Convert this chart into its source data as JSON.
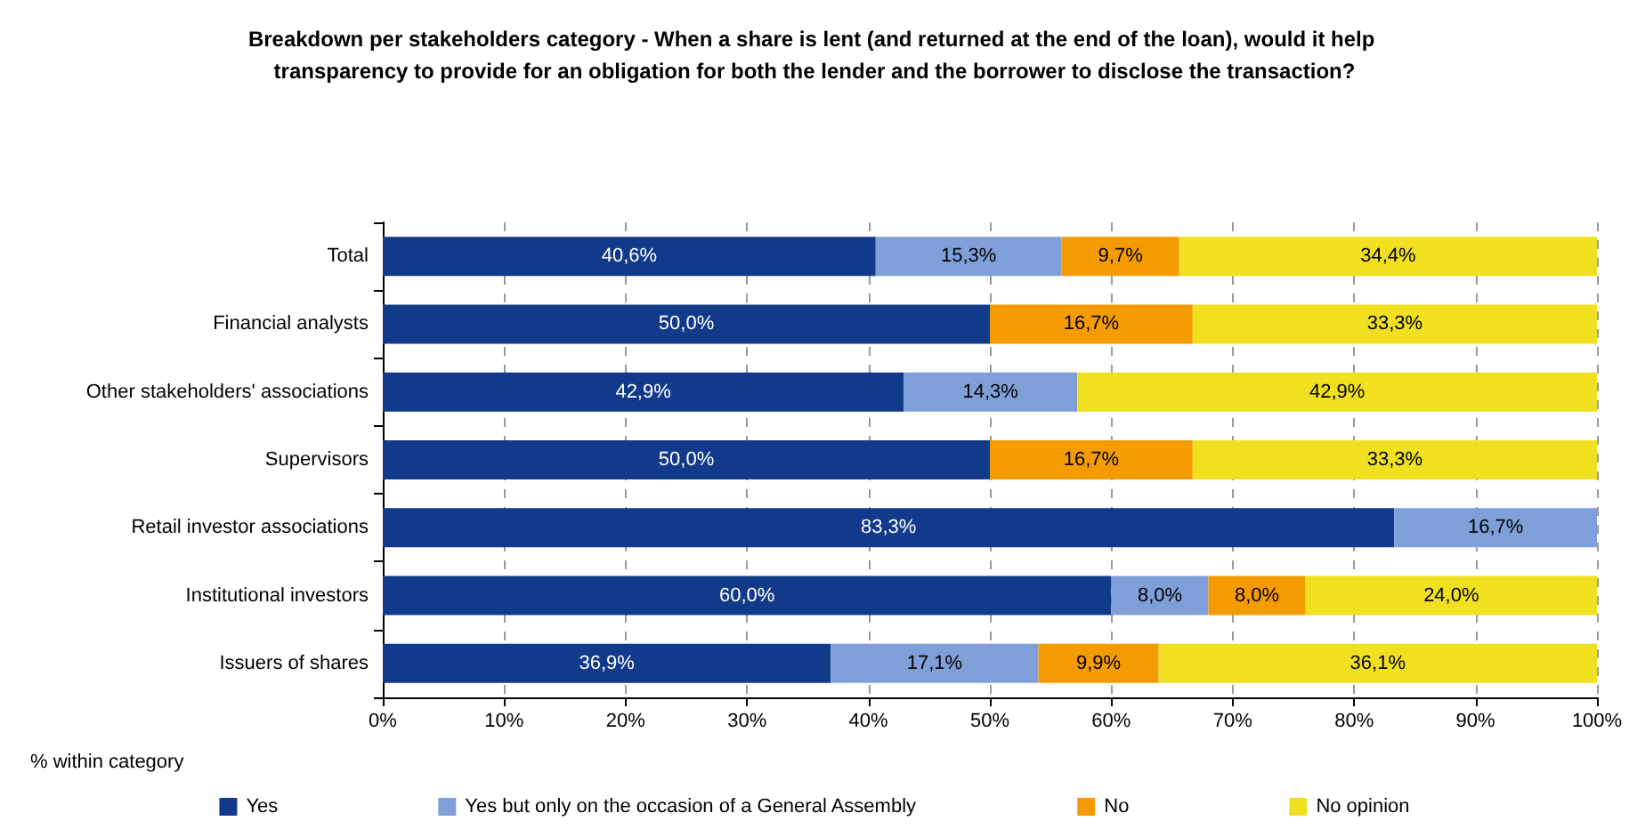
{
  "chart_data": {
    "type": "bar",
    "orientation": "horizontal",
    "stacked": true,
    "title": "Breakdown per stakeholders category - When a share is lent (and returned at the end of the loan), would it help transparency to provide for an obligation for both the lender and the borrower to disclose the transaction?",
    "xlabel": "% within category",
    "categories": [
      "Total",
      "Financial analysts",
      "Other stakeholders' associations",
      "Supervisors",
      "Retail investor associations",
      "Institutional investors",
      "Issuers of shares"
    ],
    "series": [
      {
        "name": "Yes",
        "color": "#123a8a",
        "values": [
          40.6,
          50.0,
          42.9,
          50.0,
          83.3,
          60.0,
          36.9
        ],
        "value_labels": [
          "40,6%",
          "50,0%",
          "42,9%",
          "50,0%",
          "83,3%",
          "60,0%",
          "36,9%"
        ]
      },
      {
        "name": "Yes but only on the occasion of a General Assembly",
        "color": "#7f9fd8",
        "values": [
          15.3,
          null,
          14.3,
          null,
          16.7,
          8.0,
          17.1
        ],
        "value_labels": [
          "15,3%",
          null,
          "14,3%",
          null,
          "16,7%",
          "8,0%",
          "17,1%"
        ]
      },
      {
        "name": "No",
        "color": "#f49b00",
        "values": [
          9.7,
          16.7,
          null,
          16.7,
          null,
          8.0,
          9.9
        ],
        "value_labels": [
          "9,7%",
          "16,7%",
          null,
          "16,7%",
          null,
          "8,0%",
          "9,9%"
        ]
      },
      {
        "name": "No opinion",
        "color": "#f0e020",
        "values": [
          34.4,
          33.3,
          42.9,
          33.3,
          null,
          24.0,
          36.1
        ],
        "value_labels": [
          "34,4%",
          "33,3%",
          "42,9%",
          "33,3%",
          null,
          "24,0%",
          "36,1%"
        ]
      }
    ],
    "xlim": [
      0,
      100
    ],
    "xticks": [
      {
        "value": 0,
        "label": "0%"
      },
      {
        "value": 10,
        "label": "10%"
      },
      {
        "value": 20,
        "label": "20%"
      },
      {
        "value": 30,
        "label": "30%"
      },
      {
        "value": 40,
        "label": "40%"
      },
      {
        "value": 50,
        "label": "50%"
      },
      {
        "value": 60,
        "label": "60%"
      },
      {
        "value": 70,
        "label": "70%"
      },
      {
        "value": 80,
        "label": "80%"
      },
      {
        "value": 90,
        "label": "90%"
      },
      {
        "value": 100,
        "label": "100%"
      }
    ],
    "grid": "x",
    "legend": "bottom"
  }
}
